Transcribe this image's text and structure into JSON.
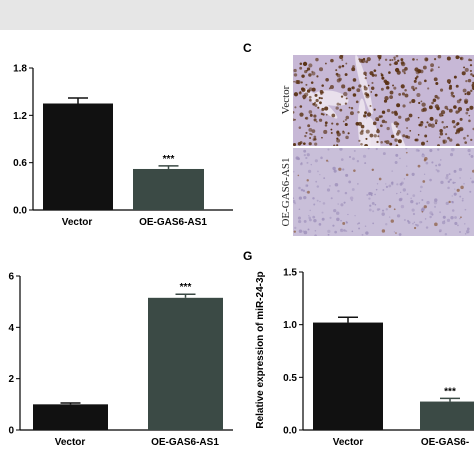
{
  "figure_title": "",
  "panel_labels": {
    "c": "C",
    "g": "G"
  },
  "colors": {
    "top_strip": "#e6e6e6",
    "vector_bar": "#111111",
    "oe_bar": "#3b4a45",
    "axis": "#000000",
    "ihc_vector_bg": "#c7b8d6",
    "ihc_vector_nuclei": "#5a3214",
    "ihc_oe_bg": "#c9bfd9",
    "ihc_oe_nuclei": "#8a5a3a"
  },
  "micrograph": {
    "top_label": "Vector",
    "bottom_label": "OE-GAS6-AS1"
  },
  "chart_data": [
    {
      "id": "top-left",
      "type": "bar",
      "categories": [
        "Vector",
        "OE-GAS6-AS1"
      ],
      "values": [
        1.35,
        0.52
      ],
      "errors": [
        0.07,
        0.04
      ],
      "significance": [
        "",
        "***"
      ],
      "ylim": [
        0,
        1.8
      ],
      "yticks": [
        "0.0",
        "0.6",
        "1.2",
        "1.8"
      ],
      "ylabel": "",
      "title": ""
    },
    {
      "id": "bottom-left",
      "type": "bar",
      "categories": [
        "Vector",
        "OE-GAS6-AS1"
      ],
      "values": [
        1.0,
        5.15
      ],
      "errors": [
        0.05,
        0.14
      ],
      "significance": [
        "",
        "***"
      ],
      "ylim": [
        0,
        6
      ],
      "yticks": [
        "0",
        "2",
        "4",
        "6"
      ],
      "ylabel": "",
      "title": ""
    },
    {
      "id": "panel-g",
      "type": "bar",
      "categories": [
        "Vector",
        "OE-GAS6-"
      ],
      "values": [
        1.02,
        0.27
      ],
      "errors": [
        0.05,
        0.03
      ],
      "significance": [
        "",
        "***"
      ],
      "ylim": [
        0,
        1.5
      ],
      "yticks": [
        "0.0",
        "0.5",
        "1.0",
        "1.5"
      ],
      "ylabel": "Relative expression of miR-24-3p",
      "title": ""
    }
  ]
}
